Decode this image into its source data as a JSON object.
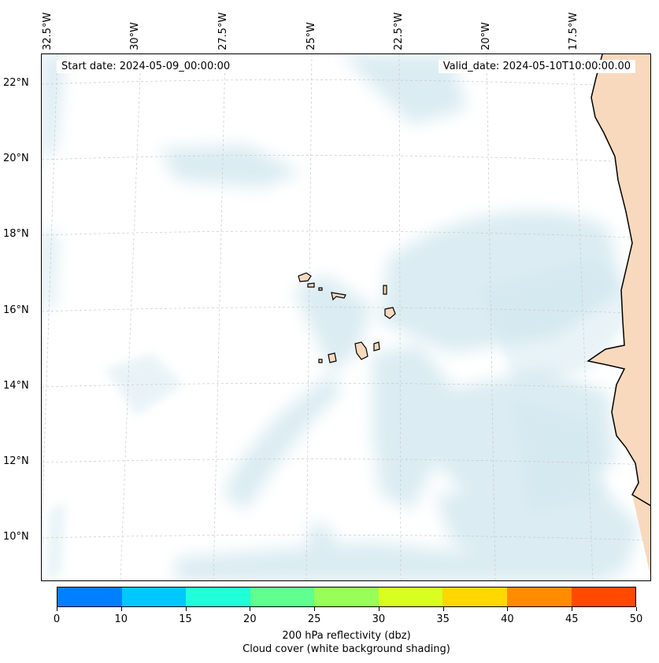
{
  "map": {
    "start_label": "Start date: 2024-05-09_00:00:00",
    "valid_label": "Valid_date: 2024-05-10T10:00:00.00",
    "lon_labels": [
      "32.5°W",
      "30°W",
      "27.5°W",
      "25°W",
      "22.5°W",
      "20°W",
      "17.5°W"
    ],
    "lat_labels": [
      "22°N",
      "20°N",
      "18°N",
      "16°N",
      "14°N",
      "12°N",
      "10°N"
    ],
    "colors": {
      "land": "#f8d9bd",
      "cloud": "#cfe6ee",
      "coast": "#000000",
      "grid": "#c8c8c8"
    }
  },
  "colorbar": {
    "ticks": [
      "0",
      "10",
      "15",
      "20",
      "25",
      "30",
      "35",
      "40",
      "45",
      "50"
    ],
    "colors": [
      "#0080ff",
      "#00c8ff",
      "#20ffd8",
      "#60ff90",
      "#98ff58",
      "#d8ff20",
      "#ffd800",
      "#ff8c00",
      "#ff4a00"
    ],
    "title_line1": "200 hPa reflectivity (dbz)",
    "title_line2": "Cloud cover (white background shading)"
  }
}
